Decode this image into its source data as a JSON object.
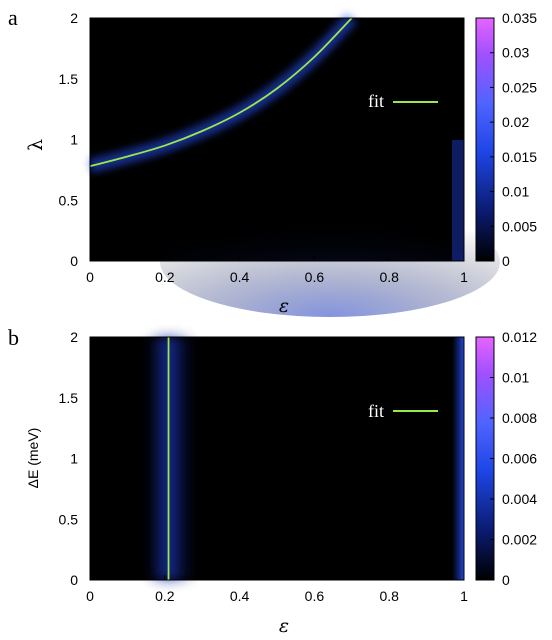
{
  "chart_data": [
    {
      "type": "heatmap",
      "panel_label": "a",
      "xlabel": "ε",
      "ylabel": "λ",
      "xlim": [
        0,
        1
      ],
      "ylim": [
        0,
        2
      ],
      "x_ticks": [
        "0",
        "0.2",
        "0.4",
        "0.6",
        "0.8",
        "1"
      ],
      "y_ticks": [
        "0",
        "0.5",
        "1",
        "1.5",
        "2"
      ],
      "colorbar_ticks": [
        "0",
        "0.005",
        "0.01",
        "0.015",
        "0.02",
        "0.025",
        "0.03",
        "0.035"
      ],
      "colorbar_range": [
        0,
        0.035
      ],
      "colormap": [
        "#000000",
        "#0a1a6e",
        "#1e46e6",
        "#5064ff",
        "#a050ff",
        "#e664ff"
      ],
      "fit_color": "#9be84a",
      "legend": [
        {
          "label": "fit",
          "color": "#9be84a"
        }
      ],
      "fit_line": {
        "x": [
          0,
          0.1,
          0.2,
          0.3,
          0.4,
          0.5,
          0.6,
          0.7
        ],
        "y": [
          0.78,
          0.86,
          0.95,
          1.07,
          1.22,
          1.42,
          1.68,
          2.0
        ]
      }
    },
    {
      "type": "heatmap",
      "panel_label": "b",
      "xlabel": "ε",
      "ylabel": "ΔE (meV)",
      "xlim": [
        0,
        1
      ],
      "ylim": [
        0,
        2
      ],
      "x_ticks": [
        "0",
        "0.2",
        "0.4",
        "0.6",
        "0.8",
        "1"
      ],
      "y_ticks": [
        "0",
        "0.5",
        "1",
        "1.5",
        "2"
      ],
      "colorbar_ticks": [
        "0",
        "0.002",
        "0.004",
        "0.006",
        "0.008",
        "0.01",
        "0.012"
      ],
      "colorbar_range": [
        0,
        0.012
      ],
      "colormap": [
        "#000000",
        "#0a1a6e",
        "#1e46e6",
        "#5064ff",
        "#a050ff",
        "#e664ff"
      ],
      "fit_color": "#9be84a",
      "legend": [
        {
          "label": "fit",
          "color": "#9be84a"
        }
      ],
      "fit_line": {
        "x": [
          0.21,
          0.21
        ],
        "y": [
          0,
          2
        ]
      }
    }
  ]
}
